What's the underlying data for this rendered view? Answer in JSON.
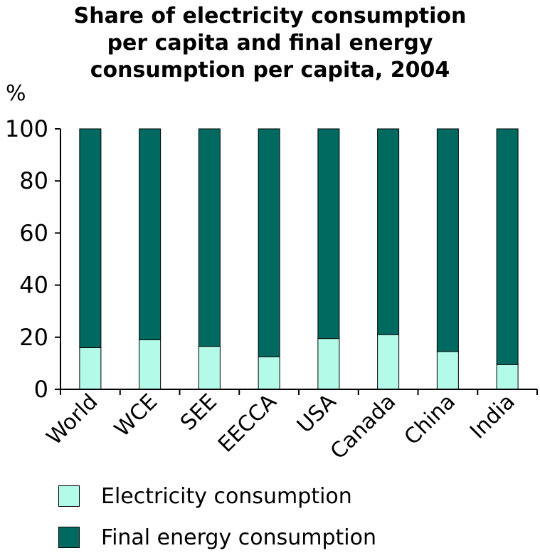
{
  "chart_data": {
    "type": "bar",
    "stacked": true,
    "title_lines": [
      "Share of electricity consumption",
      "per capita and final energy",
      "consumption per capita, 2004"
    ],
    "ylabel": "%",
    "ylim": [
      0,
      100
    ],
    "yticks": [
      0,
      20,
      40,
      60,
      80,
      100
    ],
    "grid": false,
    "legend_position": "bottom",
    "categories": [
      "World",
      "WCE",
      "SEE",
      "EECCA",
      "USA",
      "Canada",
      "China",
      "India"
    ],
    "series": [
      {
        "name": "Electricity consumption",
        "color": "#b3fbe8",
        "values": [
          16,
          19,
          16.5,
          12.5,
          19.5,
          21,
          14.5,
          9.5
        ]
      },
      {
        "name": "Final energy consumption",
        "color": "#006a61",
        "values": [
          84,
          81,
          83.5,
          87.5,
          80.5,
          79,
          85.5,
          90.5
        ]
      }
    ]
  }
}
